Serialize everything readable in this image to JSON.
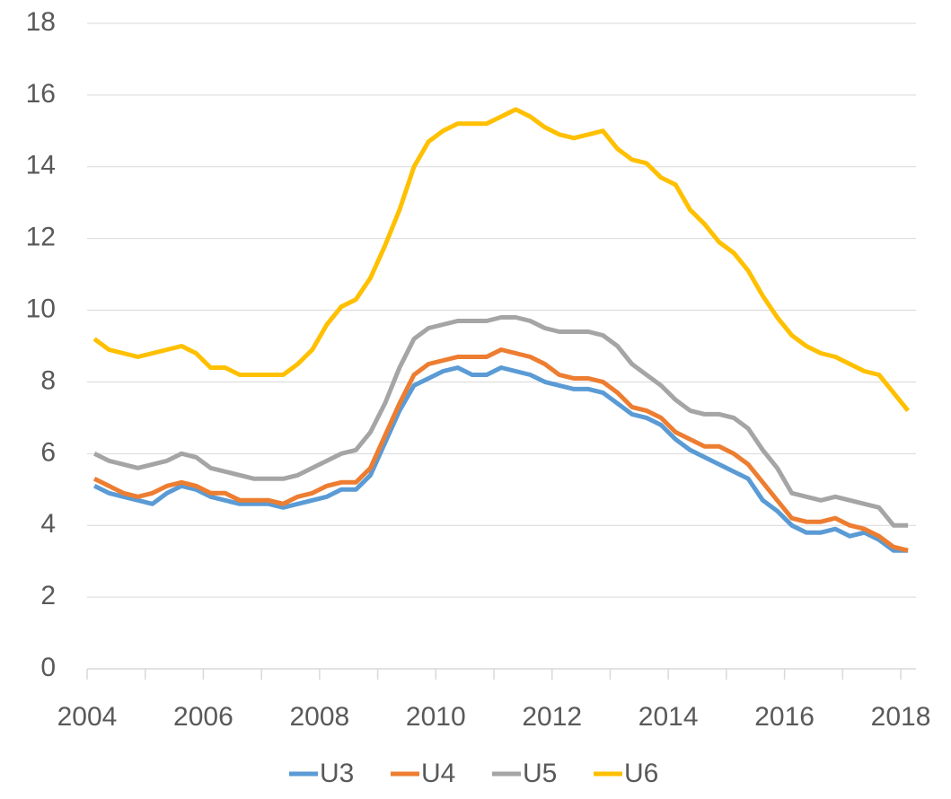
{
  "chart_data": {
    "type": "line",
    "x": [
      2004.125,
      2004.375,
      2004.625,
      2004.875,
      2005.125,
      2005.375,
      2005.625,
      2005.875,
      2006.125,
      2006.375,
      2006.625,
      2006.875,
      2007.125,
      2007.375,
      2007.625,
      2007.875,
      2008.125,
      2008.375,
      2008.625,
      2008.875,
      2009.125,
      2009.375,
      2009.625,
      2009.875,
      2010.125,
      2010.375,
      2010.625,
      2010.875,
      2011.125,
      2011.375,
      2011.625,
      2011.875,
      2012.125,
      2012.375,
      2012.625,
      2012.875,
      2013.125,
      2013.375,
      2013.625,
      2013.875,
      2014.125,
      2014.375,
      2014.625,
      2014.875,
      2015.125,
      2015.375,
      2015.625,
      2015.875,
      2016.125,
      2016.375,
      2016.625,
      2016.875,
      2017.125,
      2017.375,
      2017.625,
      2017.875,
      2018.125
    ],
    "series": [
      {
        "name": "U3",
        "color": "#5b9bd5",
        "values": [
          5.1,
          4.9,
          4.8,
          4.7,
          4.6,
          4.9,
          5.1,
          5.0,
          4.8,
          4.7,
          4.6,
          4.6,
          4.6,
          4.5,
          4.6,
          4.7,
          4.8,
          5.0,
          5.0,
          5.4,
          6.3,
          7.2,
          7.9,
          8.1,
          8.3,
          8.4,
          8.2,
          8.2,
          8.4,
          8.3,
          8.2,
          8.0,
          7.9,
          7.8,
          7.8,
          7.7,
          7.4,
          7.1,
          7.0,
          6.8,
          6.4,
          6.1,
          5.9,
          5.7,
          5.5,
          5.3,
          4.7,
          4.4,
          4.0,
          3.8,
          3.8,
          3.9,
          3.7,
          3.8,
          3.6,
          3.3,
          3.3
        ]
      },
      {
        "name": "U4",
        "color": "#ed7d31",
        "values": [
          5.3,
          5.1,
          4.9,
          4.8,
          4.9,
          5.1,
          5.2,
          5.1,
          4.9,
          4.9,
          4.7,
          4.7,
          4.7,
          4.6,
          4.8,
          4.9,
          5.1,
          5.2,
          5.2,
          5.6,
          6.5,
          7.4,
          8.2,
          8.5,
          8.6,
          8.7,
          8.7,
          8.7,
          8.9,
          8.8,
          8.7,
          8.5,
          8.2,
          8.1,
          8.1,
          8.0,
          7.7,
          7.3,
          7.2,
          7.0,
          6.6,
          6.4,
          6.2,
          6.2,
          6.0,
          5.7,
          5.2,
          4.7,
          4.2,
          4.1,
          4.1,
          4.2,
          4.0,
          3.9,
          3.7,
          3.4,
          3.3
        ]
      },
      {
        "name": "U5",
        "color": "#a5a5a5",
        "values": [
          6.0,
          5.8,
          5.7,
          5.6,
          5.7,
          5.8,
          6.0,
          5.9,
          5.6,
          5.5,
          5.4,
          5.3,
          5.3,
          5.3,
          5.4,
          5.6,
          5.8,
          6.0,
          6.1,
          6.6,
          7.4,
          8.4,
          9.2,
          9.5,
          9.6,
          9.7,
          9.7,
          9.7,
          9.8,
          9.8,
          9.7,
          9.5,
          9.4,
          9.4,
          9.4,
          9.3,
          9.0,
          8.5,
          8.2,
          7.9,
          7.5,
          7.2,
          7.1,
          7.1,
          7.0,
          6.7,
          6.1,
          5.6,
          4.9,
          4.8,
          4.7,
          4.8,
          4.7,
          4.6,
          4.5,
          4.0,
          4.0
        ]
      },
      {
        "name": "U6",
        "color": "#ffc000",
        "values": [
          9.2,
          8.9,
          8.8,
          8.7,
          8.8,
          8.9,
          9.0,
          8.8,
          8.4,
          8.4,
          8.2,
          8.2,
          8.2,
          8.2,
          8.5,
          8.9,
          9.6,
          10.1,
          10.3,
          10.9,
          11.8,
          12.8,
          14.0,
          14.7,
          15.0,
          15.2,
          15.2,
          15.2,
          15.4,
          15.6,
          15.4,
          15.1,
          14.9,
          14.8,
          14.9,
          15.0,
          14.5,
          14.2,
          14.1,
          13.7,
          13.5,
          12.8,
          12.4,
          11.9,
          11.6,
          11.1,
          10.4,
          9.8,
          9.3,
          9.0,
          8.8,
          8.7,
          8.5,
          8.3,
          8.2,
          7.7,
          7.2
        ]
      }
    ],
    "xlim": [
      2004,
      2018.2
    ],
    "xticks": [
      2004,
      2006,
      2008,
      2010,
      2012,
      2014,
      2016,
      2018
    ],
    "xminorticks": [
      2005,
      2007,
      2009,
      2011,
      2013,
      2015,
      2017
    ],
    "ylim": [
      0,
      18
    ],
    "yticks": [
      0,
      2,
      4,
      6,
      8,
      10,
      12,
      14,
      16,
      18
    ],
    "grid": true,
    "legend": "bottom"
  }
}
